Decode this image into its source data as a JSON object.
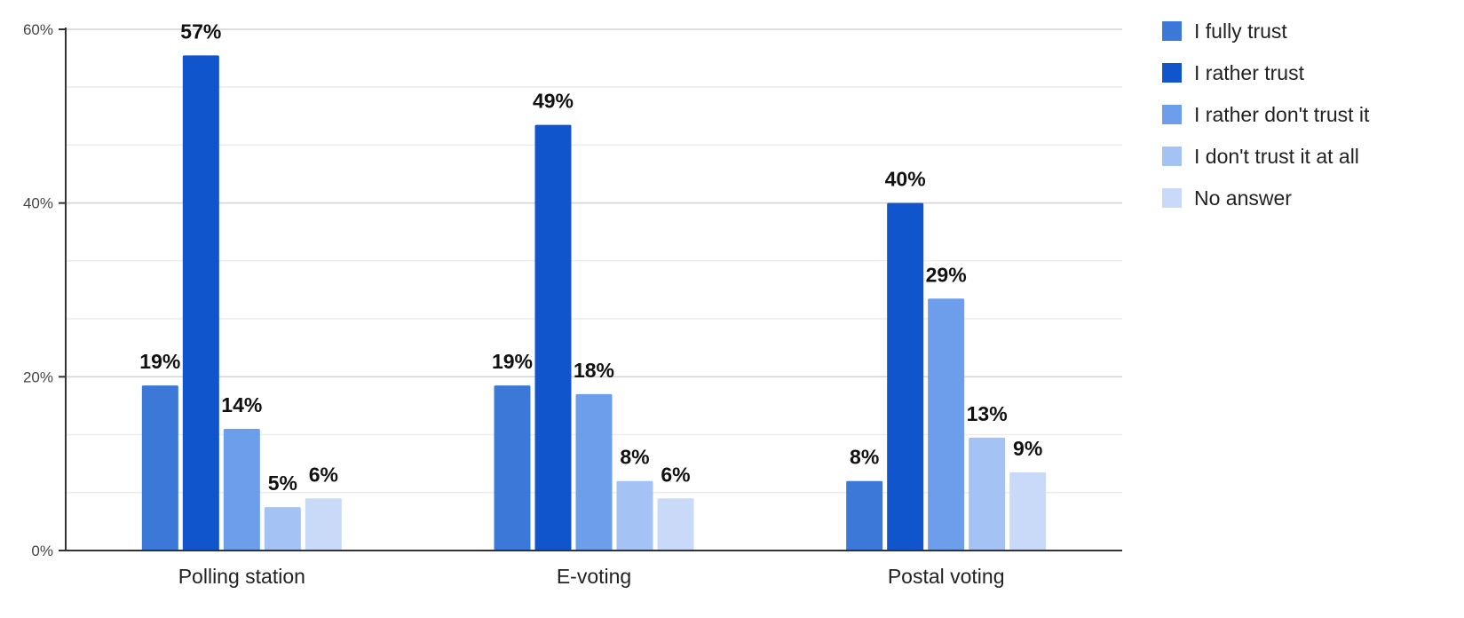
{
  "chart_data": {
    "type": "bar",
    "categories": [
      "Polling station",
      "E-voting",
      "Postal voting"
    ],
    "series": [
      {
        "name": "I fully trust",
        "values": [
          19,
          19,
          8
        ],
        "color": "#3c78d8"
      },
      {
        "name": "I rather trust",
        "values": [
          57,
          49,
          40
        ],
        "color": "#1155cc"
      },
      {
        "name": "I rather don't trust it",
        "values": [
          14,
          18,
          29
        ],
        "color": "#6d9eeb"
      },
      {
        "name": "I don't trust it at all",
        "values": [
          5,
          8,
          13
        ],
        "color": "#a4c2f4"
      },
      {
        "name": "No answer",
        "values": [
          6,
          6,
          9
        ],
        "color": "#c9daf8"
      }
    ],
    "value_suffix": "%",
    "y_ticks": [
      "0%",
      "20%",
      "40%",
      "60%"
    ],
    "ylim": [
      0,
      60
    ],
    "y_tick_values": [
      0,
      20,
      40,
      60
    ],
    "minor_grid_step": 6.67,
    "grid": true,
    "legend_position": "right",
    "title": "",
    "xlabel": "",
    "ylabel": ""
  }
}
